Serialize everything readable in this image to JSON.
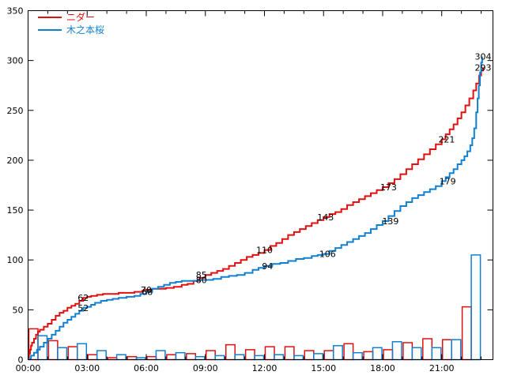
{
  "chart_data": {
    "type": "line",
    "title": "",
    "background": "#ffffff",
    "axis_color": "#000000",
    "legend_position": "top-left-inside",
    "legend": [
      {
        "label": "ニダー",
        "color": "#e01010"
      },
      {
        "label": "木之本桜",
        "color": "#1080d0"
      }
    ],
    "x_axis": {
      "range_hours": [
        0,
        23.6
      ],
      "major_tick_labels": [
        "00:00",
        "03:00",
        "06:00",
        "09:00",
        "12:00",
        "15:00",
        "18:00",
        "21:00"
      ],
      "major_tick_hours": [
        0,
        3,
        6,
        9,
        12,
        15,
        18,
        21
      ],
      "minor_tick_step_hours": 1
    },
    "y_axis": {
      "range": [
        0,
        350
      ],
      "tick_labels": [
        "0",
        "50",
        "100",
        "150",
        "200",
        "250",
        "300",
        "350"
      ],
      "tick_values": [
        0,
        50,
        100,
        150,
        200,
        250,
        300,
        350
      ]
    },
    "series": [
      {
        "name": "ニダー",
        "color": "#e01010",
        "style": "step-line",
        "points": [
          [
            0,
            2
          ],
          [
            0.05,
            6
          ],
          [
            0.1,
            10
          ],
          [
            0.15,
            14
          ],
          [
            0.2,
            17
          ],
          [
            0.3,
            21
          ],
          [
            0.4,
            25
          ],
          [
            0.5,
            28
          ],
          [
            0.6,
            30
          ],
          [
            0.8,
            33
          ],
          [
            1.0,
            36
          ],
          [
            1.2,
            40
          ],
          [
            1.4,
            44
          ],
          [
            1.6,
            47
          ],
          [
            1.8,
            49
          ],
          [
            2.0,
            52
          ],
          [
            2.2,
            54
          ],
          [
            2.4,
            56
          ],
          [
            2.6,
            59
          ],
          [
            2.8,
            62
          ],
          [
            3.0,
            63
          ],
          [
            3.2,
            64
          ],
          [
            3.5,
            65
          ],
          [
            3.8,
            66
          ],
          [
            4.2,
            66
          ],
          [
            4.6,
            67
          ],
          [
            5.0,
            67
          ],
          [
            5.4,
            68
          ],
          [
            5.8,
            69
          ],
          [
            6.0,
            70
          ],
          [
            6.3,
            71
          ],
          [
            6.6,
            71
          ],
          [
            7.0,
            72
          ],
          [
            7.4,
            73
          ],
          [
            7.8,
            75
          ],
          [
            8.1,
            76
          ],
          [
            8.4,
            79
          ],
          [
            8.7,
            82
          ],
          [
            9.0,
            85
          ],
          [
            9.3,
            87
          ],
          [
            9.6,
            89
          ],
          [
            9.9,
            91
          ],
          [
            10.2,
            94
          ],
          [
            10.5,
            97
          ],
          [
            10.8,
            100
          ],
          [
            11.1,
            103
          ],
          [
            11.4,
            105
          ],
          [
            11.7,
            107
          ],
          [
            12.0,
            110
          ],
          [
            12.3,
            114
          ],
          [
            12.6,
            117
          ],
          [
            12.9,
            121
          ],
          [
            13.2,
            125
          ],
          [
            13.5,
            128
          ],
          [
            13.8,
            131
          ],
          [
            14.1,
            134
          ],
          [
            14.4,
            137
          ],
          [
            14.7,
            140
          ],
          [
            15.0,
            143
          ],
          [
            15.3,
            146
          ],
          [
            15.6,
            148
          ],
          [
            15.9,
            151
          ],
          [
            16.2,
            155
          ],
          [
            16.5,
            158
          ],
          [
            16.8,
            161
          ],
          [
            17.1,
            164
          ],
          [
            17.4,
            167
          ],
          [
            17.7,
            170
          ],
          [
            18.0,
            173
          ],
          [
            18.3,
            177
          ],
          [
            18.6,
            181
          ],
          [
            18.9,
            186
          ],
          [
            19.2,
            191
          ],
          [
            19.5,
            196
          ],
          [
            19.8,
            201
          ],
          [
            20.1,
            206
          ],
          [
            20.4,
            211
          ],
          [
            20.7,
            216
          ],
          [
            21.0,
            221
          ],
          [
            21.2,
            226
          ],
          [
            21.4,
            231
          ],
          [
            21.6,
            236
          ],
          [
            21.8,
            242
          ],
          [
            22.0,
            248
          ],
          [
            22.2,
            255
          ],
          [
            22.4,
            262
          ],
          [
            22.6,
            270
          ],
          [
            22.75,
            277
          ],
          [
            22.9,
            285
          ],
          [
            23.0,
            290
          ],
          [
            23.1,
            293
          ]
        ]
      },
      {
        "name": "木之本桜",
        "color": "#1080d0",
        "style": "step-line",
        "points": [
          [
            0,
            1
          ],
          [
            0.15,
            4
          ],
          [
            0.3,
            7
          ],
          [
            0.45,
            10
          ],
          [
            0.6,
            13
          ],
          [
            0.8,
            17
          ],
          [
            1.0,
            21
          ],
          [
            1.2,
            25
          ],
          [
            1.4,
            29
          ],
          [
            1.6,
            33
          ],
          [
            1.8,
            37
          ],
          [
            2.0,
            40
          ],
          [
            2.2,
            43
          ],
          [
            2.4,
            46
          ],
          [
            2.6,
            49
          ],
          [
            2.8,
            52
          ],
          [
            3.0,
            53
          ],
          [
            3.2,
            55
          ],
          [
            3.4,
            57
          ],
          [
            3.7,
            59
          ],
          [
            4.0,
            60
          ],
          [
            4.3,
            61
          ],
          [
            4.6,
            62
          ],
          [
            5.0,
            63
          ],
          [
            5.4,
            64
          ],
          [
            5.7,
            66
          ],
          [
            6.0,
            68
          ],
          [
            6.3,
            71
          ],
          [
            6.6,
            73
          ],
          [
            6.9,
            75
          ],
          [
            7.2,
            77
          ],
          [
            7.5,
            78
          ],
          [
            7.8,
            79
          ],
          [
            8.2,
            79
          ],
          [
            8.6,
            80
          ],
          [
            9.0,
            80
          ],
          [
            9.4,
            81
          ],
          [
            9.8,
            83
          ],
          [
            10.2,
            84
          ],
          [
            10.6,
            85
          ],
          [
            11.0,
            87
          ],
          [
            11.4,
            90
          ],
          [
            11.7,
            92
          ],
          [
            12.0,
            94
          ],
          [
            12.4,
            96
          ],
          [
            12.8,
            97
          ],
          [
            13.2,
            99
          ],
          [
            13.6,
            101
          ],
          [
            14.0,
            102
          ],
          [
            14.4,
            104
          ],
          [
            14.7,
            105
          ],
          [
            15.0,
            106
          ],
          [
            15.3,
            109
          ],
          [
            15.6,
            112
          ],
          [
            15.9,
            115
          ],
          [
            16.2,
            118
          ],
          [
            16.5,
            121
          ],
          [
            16.8,
            124
          ],
          [
            17.1,
            127
          ],
          [
            17.4,
            131
          ],
          [
            17.7,
            135
          ],
          [
            18.0,
            139
          ],
          [
            18.3,
            144
          ],
          [
            18.6,
            149
          ],
          [
            18.9,
            154
          ],
          [
            19.2,
            158
          ],
          [
            19.5,
            162
          ],
          [
            19.8,
            165
          ],
          [
            20.1,
            168
          ],
          [
            20.4,
            171
          ],
          [
            20.7,
            174
          ],
          [
            21.0,
            179
          ],
          [
            21.2,
            183
          ],
          [
            21.4,
            187
          ],
          [
            21.6,
            191
          ],
          [
            21.8,
            196
          ],
          [
            22.0,
            200
          ],
          [
            22.15,
            204
          ],
          [
            22.3,
            209
          ],
          [
            22.45,
            215
          ],
          [
            22.55,
            222
          ],
          [
            22.65,
            232
          ],
          [
            22.75,
            248
          ],
          [
            22.82,
            262
          ],
          [
            22.88,
            275
          ],
          [
            22.94,
            288
          ],
          [
            23.0,
            298
          ],
          [
            23.05,
            304
          ]
        ]
      }
    ],
    "hourly_bars": {
      "description": "outlined unfilled bars at bottom, red = first series first half-hour slot, blue = second series second half-hour slot",
      "hours": [
        0,
        1,
        2,
        3,
        4,
        5,
        6,
        7,
        8,
        9,
        10,
        11,
        12,
        13,
        14,
        15,
        16,
        17,
        18,
        19,
        20,
        21,
        22
      ],
      "red": [
        31,
        19,
        13,
        5,
        2,
        3,
        3,
        5,
        6,
        9,
        15,
        10,
        13,
        13,
        9,
        9,
        16,
        8,
        10,
        17,
        21,
        20,
        53
      ],
      "blue": [
        24,
        12,
        16,
        9,
        5,
        2,
        9,
        7,
        3,
        4,
        5,
        4,
        5,
        4,
        6,
        14,
        7,
        12,
        18,
        12,
        12,
        20,
        105
      ]
    },
    "point_labels": [
      {
        "series": 0,
        "t": 2.8,
        "v": 62,
        "text": "62"
      },
      {
        "series": 1,
        "t": 2.8,
        "v": 52,
        "text": "52"
      },
      {
        "series": 0,
        "t": 6.0,
        "v": 70,
        "text": "70"
      },
      {
        "series": 1,
        "t": 6.05,
        "v": 68,
        "text": "68"
      },
      {
        "series": 0,
        "t": 8.8,
        "v": 85,
        "text": "85"
      },
      {
        "series": 1,
        "t": 8.8,
        "v": 80,
        "text": "80"
      },
      {
        "series": 0,
        "t": 12.0,
        "v": 110,
        "text": "110"
      },
      {
        "series": 1,
        "t": 12.15,
        "v": 94,
        "text": "94"
      },
      {
        "series": 0,
        "t": 15.1,
        "v": 143,
        "text": "143"
      },
      {
        "series": 1,
        "t": 15.2,
        "v": 106,
        "text": "106"
      },
      {
        "series": 0,
        "t": 18.3,
        "v": 173,
        "text": "173"
      },
      {
        "series": 1,
        "t": 18.4,
        "v": 139,
        "text": "139"
      },
      {
        "series": 0,
        "t": 21.25,
        "v": 221,
        "text": "221"
      },
      {
        "series": 1,
        "t": 21.3,
        "v": 179,
        "text": "179"
      },
      {
        "series": 0,
        "t": 23.1,
        "v": 293,
        "text": "293"
      },
      {
        "series": 1,
        "t": 23.1,
        "v": 304,
        "text": "304"
      }
    ]
  }
}
